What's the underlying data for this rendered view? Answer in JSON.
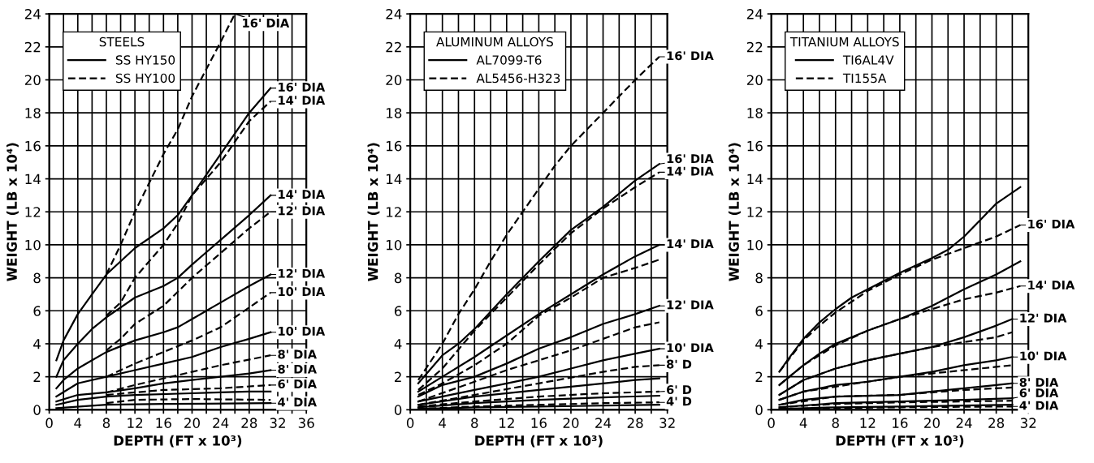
{
  "chart_data": [
    {
      "type": "line",
      "legend_title": "STEELS",
      "xlabel": "DEPTH (FT x 10³)",
      "ylabel": "WEIGHT (LB x 10⁴)",
      "xlim": [
        0,
        36
      ],
      "ylim": [
        0,
        24
      ],
      "xticks": [
        0,
        {
          "value": 2,
          "label": null
        },
        4,
        {
          "value": 6,
          "label": null
        },
        8,
        {
          "value": 10,
          "label": null
        },
        12,
        {
          "value": 14,
          "label": null
        },
        16,
        {
          "value": 18,
          "label": null
        },
        20,
        {
          "value": 22,
          "label": null
        },
        24,
        {
          "value": 26,
          "label": null
        },
        28,
        {
          "value": 30,
          "label": null
        },
        32,
        {
          "value": 34,
          "label": null
        },
        36
      ],
      "yticks": [
        0,
        2,
        4,
        6,
        8,
        10,
        12,
        14,
        16,
        18,
        20,
        22,
        24
      ],
      "grid": true,
      "legend": "top left",
      "series": [
        {
          "name": "SS HY150",
          "color": "#000000",
          "line_style": "solid",
          "x": [
            1,
            2,
            4,
            6,
            8,
            12,
            16,
            18,
            20,
            24,
            28,
            31
          ],
          "values": [
            3,
            4.2,
            5.8,
            7,
            8.2,
            9.8,
            11,
            11.8,
            13,
            15.5,
            18,
            19.5
          ]
        },
        {
          "color": "#000000",
          "line_style": "solid",
          "x": [
            1,
            2,
            4,
            6,
            8,
            12,
            16,
            18,
            20,
            24,
            28,
            31
          ],
          "values": [
            2,
            3,
            4,
            4.9,
            5.6,
            6.8,
            7.5,
            8,
            8.8,
            10.3,
            11.8,
            13
          ]
        },
        {
          "color": "#000000",
          "line_style": "solid",
          "x": [
            1,
            2,
            4,
            6,
            8,
            12,
            16,
            18,
            20,
            24,
            28,
            31
          ],
          "values": [
            1.3,
            1.8,
            2.5,
            3,
            3.5,
            4.2,
            4.7,
            5,
            5.5,
            6.5,
            7.5,
            8.2
          ]
        },
        {
          "color": "#000000",
          "line_style": "solid",
          "x": [
            1,
            4,
            8,
            12,
            16,
            20,
            24,
            28,
            31
          ],
          "values": [
            0.8,
            1.6,
            2,
            2.4,
            2.8,
            3.2,
            3.8,
            4.3,
            4.7
          ]
        },
        {
          "color": "#000000",
          "line_style": "solid",
          "x": [
            1,
            4,
            8,
            12,
            16,
            20,
            24,
            28,
            31
          ],
          "values": [
            0.5,
            0.9,
            1.05,
            1.3,
            1.6,
            1.8,
            2,
            2.2,
            2.4
          ]
        },
        {
          "color": "#000000",
          "line_style": "solid",
          "x": [
            1,
            4,
            8,
            12,
            20,
            28,
            31
          ],
          "values": [
            0.3,
            0.6,
            0.8,
            0.9,
            1,
            1.1,
            1.1
          ]
        },
        {
          "color": "#000000",
          "line_style": "solid",
          "x": [
            1,
            8,
            16,
            31
          ],
          "values": [
            0.1,
            0.3,
            0.35,
            0.4
          ]
        },
        {
          "name": "SS HY100",
          "color": "#000000",
          "line_style": "dashed",
          "x": [
            8,
            10,
            12,
            16,
            18,
            20,
            24,
            26
          ],
          "values": [
            8.2,
            10,
            12,
            15.5,
            17,
            19,
            22.3,
            24
          ]
        },
        {
          "color": "#000000",
          "line_style": "dashed",
          "x": [
            8,
            10,
            12,
            16,
            18,
            20,
            24,
            28,
            31
          ],
          "values": [
            5.7,
            6.5,
            8,
            10,
            11.3,
            13,
            15,
            17.5,
            18.7
          ]
        },
        {
          "color": "#000000",
          "line_style": "dashed",
          "x": [
            8,
            10,
            12,
            16,
            20,
            24,
            28,
            31
          ],
          "values": [
            3.6,
            4.3,
            5.2,
            6.3,
            8,
            9.5,
            11,
            12
          ]
        },
        {
          "color": "#000000",
          "line_style": "dashed",
          "x": [
            8,
            12,
            20,
            24,
            31
          ],
          "values": [
            2,
            2.8,
            4.2,
            5,
            7.1
          ]
        },
        {
          "color": "#000000",
          "line_style": "dashed",
          "x": [
            8,
            12,
            20,
            24,
            31
          ],
          "values": [
            1.05,
            1.5,
            2.3,
            2.7,
            3.3
          ]
        },
        {
          "color": "#000000",
          "line_style": "dashed",
          "x": [
            8,
            16,
            24,
            31
          ],
          "values": [
            0.9,
            1.2,
            1.3,
            1.5
          ]
        },
        {
          "color": "#000000",
          "line_style": "dashed",
          "x": [
            8,
            12,
            20,
            31
          ],
          "values": [
            0.4,
            0.6,
            0.65,
            0.6
          ]
        }
      ],
      "annotations": [
        {
          "text": "16' DIA",
          "x": 26,
          "y": 24
        },
        {
          "text": "16' DIA",
          "x": 31,
          "y": 19.5
        },
        {
          "text": "14' DIA",
          "x": 31,
          "y": 18.7
        },
        {
          "text": "14' DIA",
          "x": 31,
          "y": 13
        },
        {
          "text": "12' DIA",
          "x": 31,
          "y": 12
        },
        {
          "text": "12' DIA",
          "x": 31,
          "y": 8.2
        },
        {
          "text": "10' DIA",
          "x": 31,
          "y": 7.1
        },
        {
          "text": "10' DIA",
          "x": 31,
          "y": 4.7
        },
        {
          "text": "8' DIA",
          "x": 31,
          "y": 3.3
        },
        {
          "text": "8' DIA",
          "x": 31,
          "y": 2.4
        },
        {
          "text": "6' DIA",
          "x": 31,
          "y": 1.5
        },
        {
          "text": "4' DIA",
          "x": 31,
          "y": 0.4
        }
      ]
    },
    {
      "type": "line",
      "legend_title": "ALUMINUM ALLOYS",
      "xlabel": "DEPTH (FT x 10³)",
      "ylabel": "WEIGHT (LB x 10⁴)",
      "xlim": [
        0,
        32
      ],
      "ylim": [
        0,
        24
      ],
      "xticks": [
        0,
        {
          "value": 2,
          "label": null
        },
        4,
        {
          "value": 6,
          "label": null
        },
        8,
        {
          "value": 10,
          "label": null
        },
        12,
        {
          "value": 14,
          "label": null
        },
        16,
        {
          "value": 18,
          "label": null
        },
        20,
        {
          "value": 22,
          "label": null
        },
        24,
        {
          "value": 26,
          "label": null
        },
        28,
        {
          "value": 30,
          "label": null
        },
        32
      ],
      "yticks": [
        0,
        2,
        4,
        6,
        8,
        10,
        12,
        14,
        16,
        18,
        20,
        22,
        24
      ],
      "grid": true,
      "legend": "top left",
      "series": [
        {
          "name": "AL7099-T6",
          "color": "#000000",
          "line_style": "solid",
          "x": [
            1,
            4,
            6,
            8,
            12,
            16,
            20,
            24,
            28,
            31
          ],
          "values": [
            1.6,
            3.3,
            4,
            4.9,
            7,
            9,
            10.9,
            12.3,
            13.9,
            14.9
          ]
        },
        {
          "color": "#000000",
          "line_style": "solid",
          "x": [
            1,
            4,
            8,
            12,
            16,
            20,
            24,
            28,
            31
          ],
          "values": [
            1.1,
            2,
            3.2,
            4.5,
            5.8,
            7,
            8.2,
            9.3,
            10
          ]
        },
        {
          "color": "#000000",
          "line_style": "solid",
          "x": [
            1,
            4,
            8,
            12,
            16,
            20,
            24,
            28,
            31
          ],
          "values": [
            0.8,
            1.5,
            2,
            2.8,
            3.7,
            4.4,
            5.2,
            5.8,
            6.3
          ]
        },
        {
          "color": "#000000",
          "line_style": "solid",
          "x": [
            1,
            8,
            12,
            16,
            20,
            24,
            28,
            31
          ],
          "values": [
            0.5,
            1.2,
            1.6,
            2,
            2.5,
            3,
            3.4,
            3.7
          ]
        },
        {
          "color": "#000000",
          "line_style": "solid",
          "x": [
            1,
            8,
            16,
            24,
            28,
            31
          ],
          "values": [
            0.3,
            0.8,
            1.2,
            1.6,
            1.8,
            1.9
          ]
        },
        {
          "color": "#000000",
          "line_style": "solid",
          "x": [
            1,
            8,
            16,
            24,
            31
          ],
          "values": [
            0.15,
            0.4,
            0.6,
            0.75,
            0.85
          ]
        },
        {
          "color": "#000000",
          "line_style": "solid",
          "x": [
            1,
            8,
            16,
            24,
            31
          ],
          "values": [
            0.05,
            0.15,
            0.2,
            0.25,
            0.3
          ]
        },
        {
          "name": "AL5456-H323",
          "color": "#000000",
          "line_style": "dashed",
          "x": [
            1,
            4,
            6,
            8,
            10,
            12,
            14,
            16,
            18,
            20,
            22,
            24,
            26,
            28,
            31
          ],
          "values": [
            1.8,
            4,
            5.8,
            7.3,
            9,
            10.6,
            12,
            13.4,
            14.8,
            16,
            17,
            18,
            19,
            20,
            21.4
          ]
        },
        {
          "color": "#000000",
          "line_style": "dashed",
          "x": [
            1,
            4,
            8,
            12,
            16,
            20,
            24,
            28,
            31
          ],
          "values": [
            1.2,
            2.5,
            4.8,
            6.8,
            8.8,
            10.7,
            12.2,
            13.5,
            14.4
          ]
        },
        {
          "color": "#000000",
          "line_style": "dashed",
          "x": [
            1,
            4,
            8,
            12,
            16,
            20,
            24,
            28,
            31
          ],
          "values": [
            0.9,
            1.6,
            2.7,
            4,
            5.7,
            6.8,
            8,
            8.6,
            9.1
          ]
        },
        {
          "color": "#000000",
          "line_style": "dashed",
          "x": [
            1,
            8,
            12,
            16,
            20,
            24,
            28,
            31
          ],
          "values": [
            0.5,
            1.7,
            2.4,
            3,
            3.6,
            4.3,
            5,
            5.3
          ]
        },
        {
          "color": "#000000",
          "line_style": "dashed",
          "x": [
            1,
            8,
            16,
            24,
            28,
            31
          ],
          "values": [
            0.3,
            0.9,
            1.6,
            2.3,
            2.6,
            2.7
          ]
        },
        {
          "color": "#000000",
          "line_style": "dashed",
          "x": [
            1,
            8,
            16,
            24,
            31
          ],
          "values": [
            0.2,
            0.5,
            0.8,
            1,
            1.1
          ]
        },
        {
          "color": "#000000",
          "line_style": "dashed",
          "x": [
            1,
            8,
            16,
            24,
            31
          ],
          "values": [
            0.05,
            0.2,
            0.3,
            0.4,
            0.45
          ]
        }
      ],
      "annotations": [
        {
          "text": "16' DIA",
          "x": 31,
          "y": 21.4
        },
        {
          "text": "16' DIA",
          "x": 31,
          "y": 14.9
        },
        {
          "text": "14' DIA",
          "x": 31,
          "y": 14.4
        },
        {
          "text": "14' DIA",
          "x": 31,
          "y": 10
        },
        {
          "text": "12' DIA",
          "x": 31,
          "y": 6.3
        },
        {
          "text": "10' DIA",
          "x": 31,
          "y": 3.7
        },
        {
          "text": "8' D",
          "x": 31,
          "y": 2.7
        },
        {
          "text": "6' D",
          "x": 31,
          "y": 1.1
        },
        {
          "text": "4' D",
          "x": 31,
          "y": 0.45
        }
      ]
    },
    {
      "type": "line",
      "legend_title": "TITANIUM ALLOYS",
      "xlabel": "DEPTH (FT x 10³)",
      "ylabel": "WEIGHT (LB x 10⁴)",
      "xlim": [
        0,
        32
      ],
      "ylim": [
        0,
        24
      ],
      "xticks": [
        0,
        {
          "value": 2,
          "label": null
        },
        4,
        {
          "value": 6,
          "label": null
        },
        8,
        {
          "value": 10,
          "label": null
        },
        12,
        {
          "value": 14,
          "label": null
        },
        16,
        {
          "value": 18,
          "label": null
        },
        20,
        {
          "value": 22,
          "label": null
        },
        24,
        {
          "value": 26,
          "label": null
        },
        28,
        {
          "value": 30,
          "label": null
        },
        32
      ],
      "yticks": [
        0,
        2,
        4,
        6,
        8,
        10,
        12,
        14,
        16,
        18,
        20,
        22,
        24
      ],
      "grid": true,
      "legend": "top left",
      "series": [
        {
          "name": "TI6AL4V",
          "color": "#000000",
          "line_style": "solid",
          "x": [
            1,
            2,
            4,
            6,
            8,
            10,
            12,
            16,
            20,
            22,
            24,
            26,
            28,
            31
          ],
          "values": [
            2.3,
            3,
            4.3,
            5.3,
            6.1,
            6.8,
            7.3,
            8.3,
            9.2,
            9.7,
            10.5,
            11.5,
            12.5,
            13.5
          ]
        },
        {
          "color": "#000000",
          "line_style": "solid",
          "x": [
            1,
            4,
            6,
            8,
            12,
            16,
            20,
            24,
            28,
            31
          ],
          "values": [
            1.5,
            2.7,
            3.4,
            4,
            4.8,
            5.5,
            6.3,
            7.3,
            8.2,
            9
          ]
        },
        {
          "color": "#000000",
          "line_style": "solid",
          "x": [
            1,
            4,
            8,
            12,
            16,
            20,
            24,
            28,
            30
          ],
          "values": [
            0.9,
            1.8,
            2.5,
            3,
            3.4,
            3.8,
            4.4,
            5.1,
            5.5
          ]
        },
        {
          "color": "#000000",
          "line_style": "solid",
          "x": [
            1,
            4,
            8,
            12,
            16,
            20,
            24,
            28,
            30
          ],
          "values": [
            0.6,
            1.1,
            1.5,
            1.7,
            2,
            2.3,
            2.7,
            3,
            3.2
          ]
        },
        {
          "color": "#000000",
          "line_style": "solid",
          "x": [
            1,
            4,
            8,
            12,
            16,
            20,
            24,
            28,
            30
          ],
          "values": [
            0.3,
            0.6,
            0.8,
            0.85,
            0.9,
            1.1,
            1.3,
            1.5,
            1.6
          ]
        },
        {
          "color": "#000000",
          "line_style": "solid",
          "x": [
            1,
            8,
            16,
            24,
            30
          ],
          "values": [
            0.15,
            0.4,
            0.5,
            0.6,
            0.7
          ]
        },
        {
          "color": "#000000",
          "line_style": "solid",
          "x": [
            1,
            8,
            16,
            30
          ],
          "values": [
            0.05,
            0.15,
            0.2,
            0.3
          ]
        },
        {
          "name": "TI155A",
          "color": "#000000",
          "line_style": "dashed",
          "x": [
            1,
            4,
            6,
            8,
            12,
            16,
            20,
            24,
            28,
            31
          ],
          "values": [
            2.3,
            4.2,
            5.1,
            5.9,
            7.2,
            8.2,
            9.1,
            9.8,
            10.5,
            11.2
          ]
        },
        {
          "color": "#000000",
          "line_style": "dashed",
          "x": [
            1,
            4,
            8,
            12,
            16,
            20,
            24,
            28,
            31
          ],
          "values": [
            1.5,
            2.7,
            3.9,
            4.8,
            5.5,
            6.1,
            6.7,
            7.1,
            7.5
          ]
        },
        {
          "color": "#000000",
          "line_style": "dashed",
          "x": [
            1,
            4,
            8,
            12,
            16,
            20,
            24,
            28,
            30
          ],
          "values": [
            0.9,
            1.8,
            2.5,
            3,
            3.4,
            3.8,
            4.1,
            4.4,
            4.7
          ]
        },
        {
          "color": "#000000",
          "line_style": "dashed",
          "x": [
            1,
            4,
            8,
            12,
            16,
            20,
            24,
            28,
            30
          ],
          "values": [
            0.6,
            1.1,
            1.4,
            1.7,
            2,
            2.2,
            2.4,
            2.6,
            2.7
          ]
        },
        {
          "color": "#000000",
          "line_style": "dashed",
          "x": [
            1,
            8,
            16,
            24,
            30
          ],
          "values": [
            0.3,
            0.8,
            0.9,
            1.2,
            1.35
          ]
        },
        {
          "color": "#000000",
          "line_style": "dashed",
          "x": [
            1,
            8,
            16,
            24,
            30
          ],
          "values": [
            0.15,
            0.35,
            0.45,
            0.5,
            0.55
          ]
        },
        {
          "color": "#000000",
          "line_style": "dashed",
          "x": [
            1,
            8,
            16,
            30
          ],
          "values": [
            0.05,
            0.1,
            0.15,
            0.2
          ]
        }
      ],
      "annotations": [
        {
          "text": "16' DIA",
          "x": 31,
          "y": 11.2
        },
        {
          "text": "14' DIA",
          "x": 31,
          "y": 7.5
        },
        {
          "text": "12' DIA",
          "x": 30,
          "y": 5.5
        },
        {
          "text": "10' DIA",
          "x": 30,
          "y": 3.2
        },
        {
          "text": "8' DIA",
          "x": 30,
          "y": 1.6
        },
        {
          "text": "6' DIA",
          "x": 30,
          "y": 0.7
        },
        {
          "text": "4' DIA",
          "x": 30,
          "y": 0.2
        }
      ]
    }
  ]
}
